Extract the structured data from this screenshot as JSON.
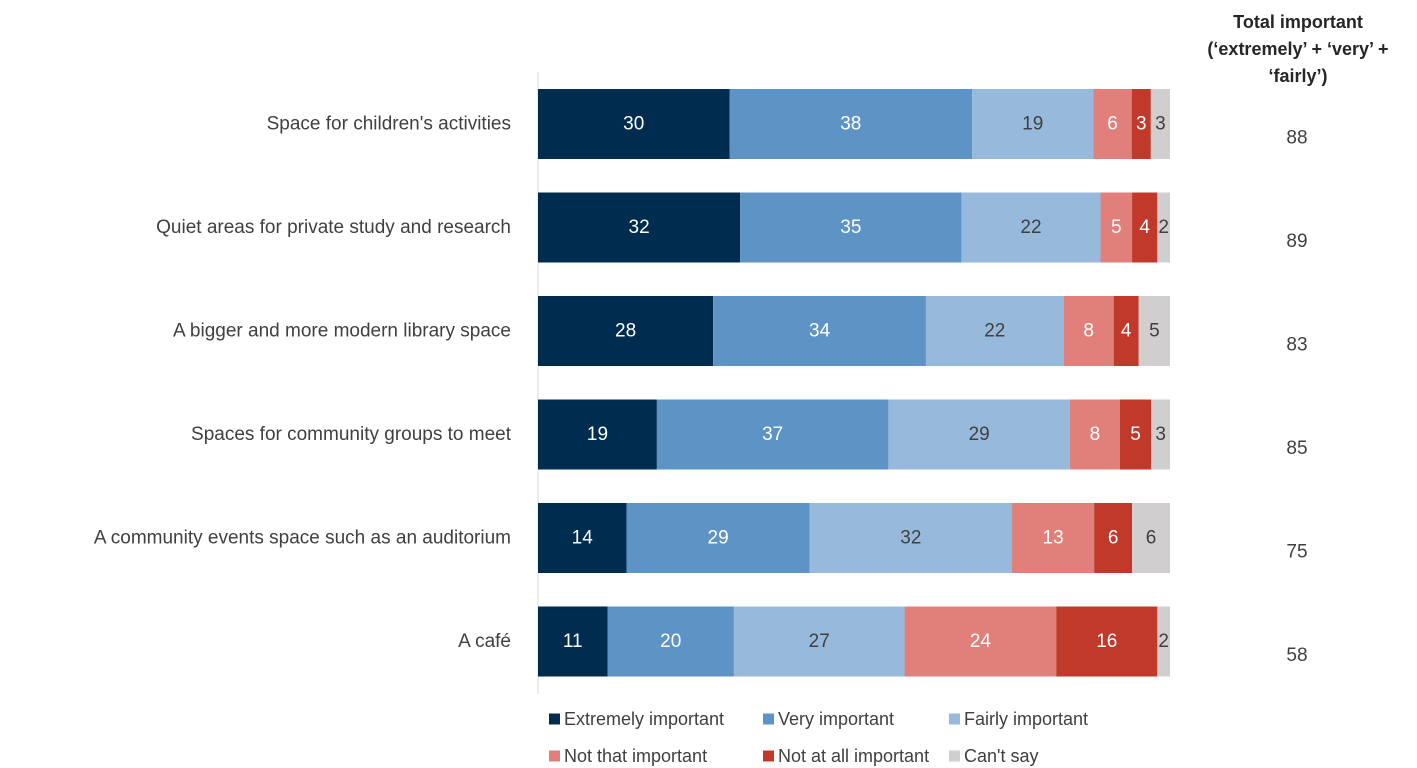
{
  "chart_data": {
    "type": "bar",
    "orientation": "horizontal",
    "stacked": true,
    "categories": [
      "Space for children's activities",
      "Quiet areas for private study and research",
      "A bigger and more modern library space",
      "Spaces for community groups to meet",
      "A community events space such as an auditorium",
      "A café"
    ],
    "series": [
      {
        "name": "Extremely important",
        "color": "#002d4f",
        "label_color": "#ffffff",
        "values": [
          30,
          32,
          28,
          19,
          14,
          11
        ]
      },
      {
        "name": "Very important",
        "color": "#5e94c5",
        "label_color": "#ffffff",
        "values": [
          38,
          35,
          34,
          37,
          29,
          20
        ]
      },
      {
        "name": "Fairly important",
        "color": "#97b9dc",
        "label_color": "#404040",
        "values": [
          19,
          22,
          22,
          29,
          32,
          27
        ]
      },
      {
        "name": "Not that important",
        "color": "#e1807a",
        "label_color": "#ffffff",
        "values": [
          6,
          5,
          8,
          8,
          13,
          24
        ]
      },
      {
        "name": "Not at all important",
        "color": "#c0392b",
        "label_color": "#ffffff",
        "values": [
          3,
          4,
          4,
          5,
          6,
          16
        ]
      },
      {
        "name": "Can't say",
        "color": "#d0cece",
        "label_color": "#404040",
        "values": [
          3,
          2,
          5,
          3,
          6,
          2
        ]
      }
    ],
    "totals": {
      "header_lines": [
        "Total important",
        "(‘extremely’ + ‘very’ +",
        "‘fairly’)"
      ],
      "values": [
        88,
        89,
        83,
        85,
        75,
        58
      ]
    },
    "legend_position": "bottom",
    "grid": false
  }
}
